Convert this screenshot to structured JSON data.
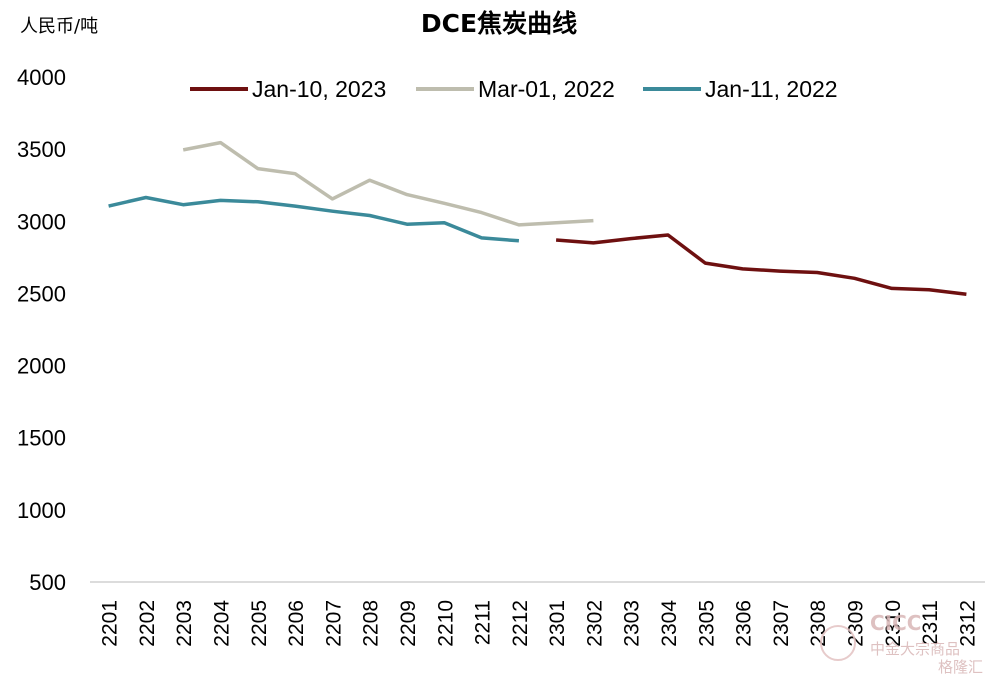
{
  "chart_data": {
    "type": "line",
    "title": "DCE焦炭曲线",
    "unit_label": "人民币/吨",
    "ylim": [
      500,
      4000
    ],
    "yticks": [
      500,
      1000,
      1500,
      2000,
      2500,
      3000,
      3500,
      4000
    ],
    "categories": [
      "2201",
      "2202",
      "2203",
      "2204",
      "2205",
      "2206",
      "2207",
      "2208",
      "2209",
      "2210",
      "2211",
      "2212",
      "2301",
      "2302",
      "2303",
      "2304",
      "2305",
      "2306",
      "2307",
      "2308",
      "2309",
      "2310",
      "2311",
      "2312"
    ],
    "legend_position": "top",
    "grid": false,
    "series": [
      {
        "name": "Jan-10, 2023",
        "color": "#6e1010",
        "values": [
          null,
          null,
          null,
          null,
          null,
          null,
          null,
          null,
          null,
          null,
          null,
          null,
          2870,
          2850,
          2880,
          2905,
          2710,
          2670,
          2655,
          2645,
          2605,
          2535,
          2525,
          2495
        ]
      },
      {
        "name": "Mar-01, 2022",
        "color": "#bebdae",
        "values": [
          null,
          null,
          3495,
          3545,
          3365,
          3330,
          3155,
          3285,
          3185,
          3125,
          3060,
          2975,
          2990,
          3005,
          null,
          null,
          null,
          null,
          null,
          null,
          null,
          null,
          null,
          null
        ]
      },
      {
        "name": "Jan-11, 2022",
        "color": "#3b8a9a",
        "values": [
          3105,
          3165,
          3115,
          3145,
          3135,
          3105,
          3070,
          3040,
          2980,
          2990,
          2885,
          2865,
          null,
          null,
          null,
          null,
          null,
          null,
          null,
          null,
          null,
          null,
          null,
          null
        ]
      }
    ]
  },
  "watermark": {
    "brand": "CICC",
    "cn": "中金大宗商品",
    "logo_text": "格隆汇"
  }
}
